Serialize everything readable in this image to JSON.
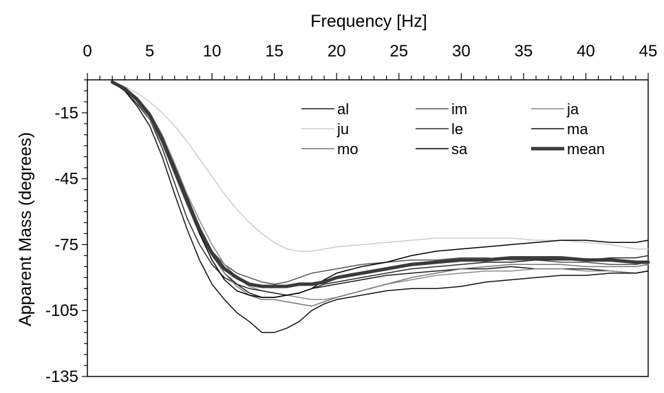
{
  "chart_data": {
    "type": "line",
    "title": "",
    "xlabel": "Frequency [Hz]",
    "ylabel": "Apparent Mass (degrees)",
    "xlim": [
      0,
      45
    ],
    "ylim": [
      -135,
      0
    ],
    "x_ticks": [
      0,
      5,
      10,
      15,
      20,
      25,
      30,
      35,
      40,
      45
    ],
    "y_ticks": [
      -15,
      -45,
      -75,
      -105,
      -135
    ],
    "x_axis_position": "top",
    "grid": false,
    "legend_placement": "top-right",
    "series": [
      {
        "name": "al",
        "color": "#1a1a1a",
        "width": 1.5,
        "x": [
          2,
          3,
          4,
          5,
          6,
          7,
          8,
          9,
          10,
          11,
          12,
          13,
          14,
          15,
          16,
          17,
          18,
          19,
          20,
          22,
          24,
          26,
          28,
          30,
          32,
          34,
          36,
          38,
          40,
          42,
          44,
          45
        ],
        "y": [
          -1,
          -4,
          -9,
          -15,
          -25,
          -39,
          -53,
          -67,
          -79,
          -88,
          -93,
          -97,
          -99,
          -99,
          -98,
          -97,
          -95,
          -94,
          -93,
          -91,
          -89,
          -88,
          -87,
          -86,
          -86,
          -85,
          -86,
          -86,
          -86,
          -87,
          -88,
          -87
        ]
      },
      {
        "name": "im",
        "color": "#555555",
        "width": 1.5,
        "x": [
          2,
          3,
          4,
          5,
          6,
          7,
          8,
          9,
          10,
          11,
          12,
          13,
          14,
          15,
          16,
          17,
          18,
          19,
          20,
          22,
          24,
          26,
          28,
          30,
          32,
          34,
          36,
          38,
          40,
          42,
          44,
          45
        ],
        "y": [
          -1,
          -4,
          -9,
          -16,
          -27,
          -40,
          -55,
          -68,
          -78,
          -84,
          -88,
          -90,
          -92,
          -93,
          -92,
          -90,
          -88,
          -87,
          -86,
          -84,
          -83,
          -82,
          -82,
          -81,
          -81,
          -82,
          -82,
          -83,
          -83,
          -84,
          -84,
          -83
        ]
      },
      {
        "name": "ja",
        "color": "#8c8c8c",
        "width": 1.5,
        "x": [
          2,
          3,
          4,
          5,
          6,
          7,
          8,
          9,
          10,
          11,
          12,
          13,
          14,
          15,
          16,
          17,
          18,
          19,
          20,
          22,
          24,
          26,
          28,
          30,
          32,
          34,
          36,
          38,
          40,
          42,
          44,
          45
        ],
        "y": [
          -1,
          -4,
          -8,
          -15,
          -25,
          -38,
          -52,
          -64,
          -75,
          -84,
          -90,
          -94,
          -96,
          -97,
          -98,
          -99,
          -100,
          -100,
          -99,
          -96,
          -93,
          -91,
          -89,
          -88,
          -87,
          -87,
          -86,
          -86,
          -87,
          -87,
          -88,
          -87
        ]
      },
      {
        "name": "ju",
        "color": "#cccccc",
        "width": 1.5,
        "x": [
          2,
          3,
          4,
          5,
          6,
          7,
          8,
          9,
          10,
          11,
          12,
          13,
          14,
          15,
          16,
          17,
          18,
          19,
          20,
          22,
          24,
          26,
          28,
          30,
          32,
          34,
          36,
          38,
          40,
          42,
          44,
          45
        ],
        "y": [
          -1,
          -3,
          -6,
          -10,
          -15,
          -21,
          -28,
          -36,
          -44,
          -52,
          -59,
          -65,
          -70,
          -74,
          -77,
          -78,
          -78,
          -77,
          -76,
          -75,
          -74,
          -73,
          -72,
          -72,
          -72,
          -72,
          -73,
          -73,
          -74,
          -75,
          -77,
          -77
        ]
      },
      {
        "name": "le",
        "color": "#2a2a2a",
        "width": 1.5,
        "x": [
          2,
          3,
          4,
          5,
          6,
          7,
          8,
          9,
          10,
          11,
          12,
          13,
          14,
          15,
          16,
          17,
          18,
          19,
          20,
          22,
          24,
          26,
          28,
          30,
          32,
          34,
          36,
          38,
          40,
          42,
          44,
          45
        ],
        "y": [
          -1,
          -5,
          -11,
          -18,
          -31,
          -47,
          -63,
          -75,
          -84,
          -90,
          -93,
          -95,
          -96,
          -97,
          -98,
          -97,
          -95,
          -93,
          -92,
          -90,
          -88,
          -86,
          -85,
          -84,
          -83,
          -83,
          -82,
          -82,
          -82,
          -81,
          -81,
          -80
        ]
      },
      {
        "name": "ma",
        "color": "#111111",
        "width": 1.5,
        "x": [
          2,
          3,
          4,
          5,
          6,
          7,
          8,
          9,
          10,
          11,
          12,
          13,
          14,
          15,
          16,
          17,
          18,
          19,
          20,
          22,
          24,
          26,
          28,
          30,
          32,
          34,
          36,
          38,
          40,
          42,
          44,
          45
        ],
        "y": [
          -1,
          -5,
          -12,
          -21,
          -35,
          -52,
          -68,
          -82,
          -93,
          -100,
          -106,
          -110,
          -115,
          -115,
          -113,
          -110,
          -105,
          -102,
          -100,
          -98,
          -96,
          -95,
          -95,
          -94,
          -92,
          -91,
          -90,
          -89,
          -89,
          -88,
          -88,
          -87
        ]
      },
      {
        "name": "mo",
        "color": "#777777",
        "width": 1.5,
        "x": [
          2,
          3,
          4,
          5,
          6,
          7,
          8,
          9,
          10,
          11,
          12,
          13,
          14,
          15,
          16,
          17,
          18,
          19,
          20,
          22,
          24,
          26,
          28,
          30,
          32,
          34,
          36,
          38,
          40,
          42,
          44,
          45
        ],
        "y": [
          -1,
          -4,
          -10,
          -18,
          -29,
          -43,
          -57,
          -70,
          -80,
          -88,
          -94,
          -98,
          -100,
          -100,
          -101,
          -102,
          -103,
          -101,
          -99,
          -96,
          -93,
          -90,
          -88,
          -86,
          -85,
          -84,
          -84,
          -84,
          -85,
          -85,
          -85,
          -84
        ]
      },
      {
        "name": "sa",
        "color": "#000000",
        "width": 1.5,
        "x": [
          2,
          3,
          4,
          5,
          6,
          7,
          8,
          9,
          10,
          11,
          12,
          13,
          14,
          15,
          16,
          17,
          18,
          19,
          20,
          22,
          24,
          26,
          28,
          30,
          32,
          34,
          36,
          38,
          40,
          42,
          44,
          45
        ],
        "y": [
          -1,
          -4,
          -9,
          -16,
          -27,
          -41,
          -56,
          -70,
          -82,
          -91,
          -96,
          -98,
          -99,
          -99,
          -98,
          -97,
          -95,
          -91,
          -88,
          -85,
          -83,
          -80,
          -78,
          -77,
          -76,
          -75,
          -74,
          -73,
          -73,
          -74,
          -74,
          -73
        ]
      },
      {
        "name": "mean",
        "color": "#3a3a3a",
        "width": 5,
        "x": [
          2,
          3,
          4,
          5,
          6,
          7,
          8,
          9,
          10,
          11,
          12,
          13,
          14,
          15,
          16,
          17,
          18,
          19,
          20,
          22,
          24,
          26,
          28,
          30,
          32,
          34,
          36,
          38,
          40,
          42,
          44,
          45
        ],
        "y": [
          -1,
          -4,
          -9,
          -16,
          -27,
          -41,
          -55,
          -68,
          -79,
          -86,
          -90,
          -93,
          -94,
          -94,
          -94,
          -93,
          -93,
          -92,
          -90,
          -88,
          -86,
          -84,
          -83,
          -82,
          -82,
          -81,
          -81,
          -81,
          -82,
          -82,
          -83,
          -83
        ]
      }
    ]
  }
}
